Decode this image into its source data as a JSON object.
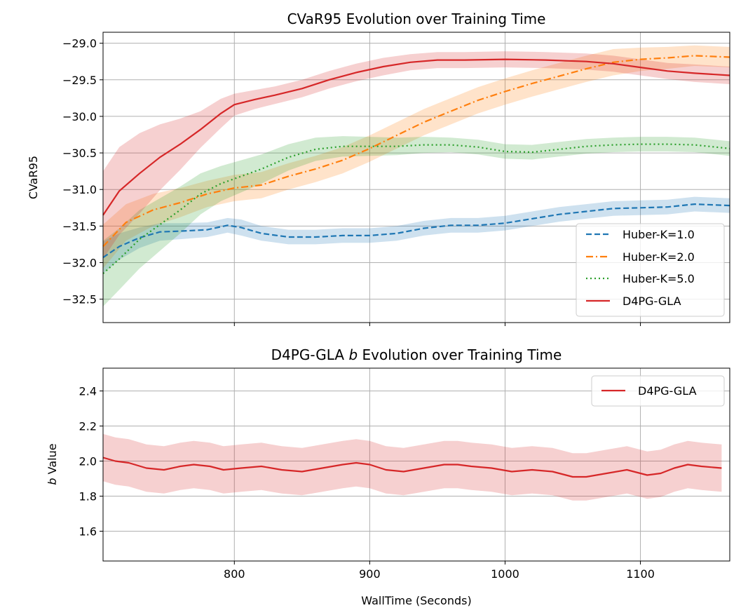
{
  "chart_data": [
    {
      "type": "line",
      "title": "CVaR95 Evolution over Training Time",
      "xlabel": "",
      "ylabel": "CVaR95",
      "xlim": [
        703,
        1166
      ],
      "ylim": [
        -32.82,
        -28.85
      ],
      "xticks": [
        800,
        900,
        1000,
        1100
      ],
      "yticks": [
        -29.0,
        -29.5,
        -30.0,
        -30.5,
        -31.0,
        -31.5,
        -32.0,
        -32.5
      ],
      "ytick_labels": [
        "−29.0",
        "−29.5",
        "−30.0",
        "−30.5",
        "−31.0",
        "−31.5",
        "−32.0",
        "−32.5"
      ],
      "grid": true,
      "legend_position": "bottom-right",
      "series": [
        {
          "name": "Huber-K=1.0",
          "color": "#1f77b4",
          "style": "dashed",
          "x": [
            703,
            715,
            730,
            745,
            760,
            780,
            795,
            805,
            820,
            840,
            860,
            880,
            900,
            920,
            940,
            960,
            980,
            1000,
            1020,
            1040,
            1060,
            1080,
            1100,
            1120,
            1140,
            1166
          ],
          "y": [
            -31.93,
            -31.78,
            -31.66,
            -31.58,
            -31.57,
            -31.55,
            -31.49,
            -31.52,
            -31.6,
            -31.65,
            -31.65,
            -31.63,
            -31.63,
            -31.6,
            -31.53,
            -31.49,
            -31.49,
            -31.46,
            -31.4,
            -31.34,
            -31.3,
            -31.26,
            -31.25,
            -31.24,
            -31.2,
            -31.22
          ],
          "band": [
            0.22,
            0.18,
            0.14,
            0.12,
            0.11,
            0.1,
            0.1,
            0.11,
            0.1,
            0.1,
            0.1,
            0.1,
            0.1,
            0.1,
            0.1,
            0.1,
            0.1,
            0.1,
            0.1,
            0.1,
            0.1,
            0.1,
            0.1,
            0.1,
            0.1,
            0.1
          ]
        },
        {
          "name": "Huber-K=2.0",
          "color": "#ff7f0e",
          "style": "dashdot",
          "x": [
            703,
            720,
            740,
            760,
            780,
            800,
            820,
            840,
            860,
            880,
            900,
            920,
            940,
            960,
            980,
            1000,
            1020,
            1040,
            1060,
            1080,
            1100,
            1120,
            1140,
            1166
          ],
          "y": [
            -31.78,
            -31.45,
            -31.28,
            -31.18,
            -31.06,
            -30.98,
            -30.94,
            -30.82,
            -30.72,
            -30.6,
            -30.44,
            -30.26,
            -30.08,
            -29.93,
            -29.78,
            -29.66,
            -29.55,
            -29.45,
            -29.35,
            -29.26,
            -29.22,
            -29.2,
            -29.17,
            -29.19
          ],
          "band": [
            0.3,
            0.25,
            0.22,
            0.2,
            0.18,
            0.18,
            0.18,
            0.18,
            0.18,
            0.18,
            0.18,
            0.18,
            0.18,
            0.18,
            0.18,
            0.18,
            0.18,
            0.18,
            0.18,
            0.18,
            0.16,
            0.15,
            0.14,
            0.14
          ]
        },
        {
          "name": "Huber-K=5.0",
          "color": "#2ca02c",
          "style": "dotted",
          "x": [
            703,
            715,
            730,
            745,
            760,
            775,
            790,
            805,
            820,
            840,
            860,
            880,
            900,
            920,
            940,
            960,
            980,
            1000,
            1020,
            1040,
            1060,
            1080,
            1100,
            1120,
            1140,
            1166
          ],
          "y": [
            -32.15,
            -31.95,
            -31.68,
            -31.48,
            -31.28,
            -31.06,
            -30.92,
            -30.82,
            -30.72,
            -30.56,
            -30.45,
            -30.41,
            -30.41,
            -30.41,
            -30.39,
            -30.39,
            -30.42,
            -30.48,
            -30.49,
            -30.45,
            -30.41,
            -30.39,
            -30.38,
            -30.38,
            -30.39,
            -30.44
          ],
          "band": [
            0.45,
            0.42,
            0.4,
            0.36,
            0.32,
            0.28,
            0.24,
            0.22,
            0.2,
            0.18,
            0.16,
            0.14,
            0.13,
            0.12,
            0.11,
            0.1,
            0.1,
            0.1,
            0.1,
            0.1,
            0.1,
            0.1,
            0.1,
            0.1,
            0.1,
            0.1
          ]
        },
        {
          "name": "D4PG-GLA",
          "color": "#d62728",
          "style": "solid",
          "x": [
            703,
            715,
            730,
            745,
            760,
            775,
            790,
            800,
            815,
            830,
            850,
            870,
            890,
            910,
            930,
            950,
            970,
            1000,
            1030,
            1060,
            1080,
            1100,
            1120,
            1140,
            1166
          ],
          "y": [
            -31.35,
            -31.02,
            -30.78,
            -30.56,
            -30.38,
            -30.18,
            -29.96,
            -29.84,
            -29.77,
            -29.71,
            -29.62,
            -29.5,
            -29.4,
            -29.32,
            -29.26,
            -29.23,
            -29.23,
            -29.22,
            -29.23,
            -29.25,
            -29.28,
            -29.33,
            -29.38,
            -29.41,
            -29.44
          ],
          "band": [
            0.6,
            0.6,
            0.55,
            0.45,
            0.35,
            0.25,
            0.2,
            0.15,
            0.13,
            0.12,
            0.12,
            0.12,
            0.12,
            0.12,
            0.11,
            0.11,
            0.11,
            0.11,
            0.11,
            0.11,
            0.11,
            0.11,
            0.11,
            0.12,
            0.12
          ]
        }
      ]
    },
    {
      "type": "line",
      "title_prefix": "D4PG-GLA ",
      "title_italic": "b",
      "title_suffix": " Evolution over Training Time",
      "xlabel": "WallTime (Seconds)",
      "ylabel_italic": "b",
      "ylabel_suffix": " Value",
      "xlim": [
        703,
        1166
      ],
      "ylim": [
        1.43,
        2.53
      ],
      "xticks": [
        800,
        900,
        1000,
        1100
      ],
      "yticks": [
        2.4,
        2.2,
        2.0,
        1.8,
        1.6
      ],
      "ytick_labels": [
        "2.4",
        "2.2",
        "2.0",
        "1.8",
        "1.6"
      ],
      "grid": true,
      "legend_position": "top-right",
      "series": [
        {
          "name": "D4PG-GLA",
          "color": "#d62728",
          "style": "solid",
          "x": [
            703,
            712,
            722,
            735,
            748,
            760,
            770,
            782,
            792,
            805,
            820,
            835,
            850,
            865,
            880,
            890,
            900,
            912,
            925,
            940,
            955,
            965,
            975,
            990,
            1005,
            1020,
            1035,
            1050,
            1060,
            1075,
            1090,
            1105,
            1115,
            1125,
            1135,
            1145,
            1160
          ],
          "y": [
            2.02,
            2.0,
            1.99,
            1.96,
            1.95,
            1.97,
            1.98,
            1.97,
            1.95,
            1.96,
            1.97,
            1.95,
            1.94,
            1.96,
            1.98,
            1.99,
            1.98,
            1.95,
            1.94,
            1.96,
            1.98,
            1.98,
            1.97,
            1.96,
            1.94,
            1.95,
            1.94,
            1.91,
            1.91,
            1.93,
            1.95,
            1.92,
            1.93,
            1.96,
            1.98,
            1.97,
            1.96
          ],
          "band": 0.135
        }
      ]
    }
  ]
}
